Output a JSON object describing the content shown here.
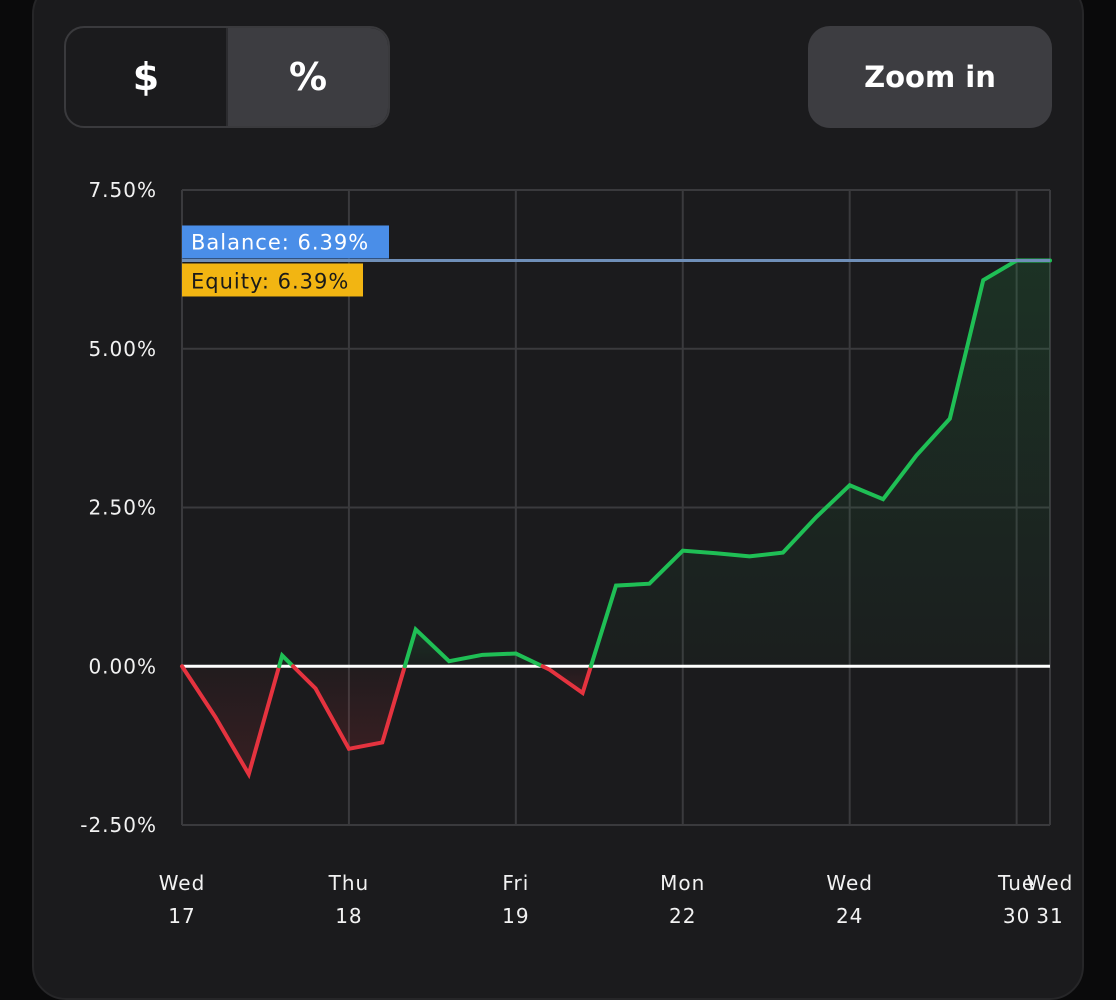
{
  "toggle": {
    "dollar_label": "$",
    "percent_label": "%",
    "active": "percent"
  },
  "zoom": {
    "label": "Zoom in"
  },
  "colors": {
    "positive": "#1fbf55",
    "negative": "#e5333f",
    "balance": "#4a8ee8",
    "equity": "#f2b512",
    "grid": "#3a3a3d",
    "zero_line": "#ffffff"
  },
  "chart_data": {
    "type": "line",
    "title": "",
    "xlabel": "",
    "ylabel": "",
    "ylim": [
      -2.5,
      7.5
    ],
    "y_ticks": [
      {
        "value": 7.5,
        "label": "7.50%"
      },
      {
        "value": 5.0,
        "label": "5.00%"
      },
      {
        "value": 2.5,
        "label": "2.50%"
      },
      {
        "value": 0.0,
        "label": "0.00%"
      },
      {
        "value": -2.5,
        "label": "-2.50%"
      }
    ],
    "x_ticks": [
      {
        "day": "Wed",
        "date": "17",
        "index": 0
      },
      {
        "day": "Thu",
        "date": "18",
        "index": 5
      },
      {
        "day": "Fri",
        "date": "19",
        "index": 10
      },
      {
        "day": "Mon",
        "date": "22",
        "index": 15
      },
      {
        "day": "Wed",
        "date": "24",
        "index": 20
      },
      {
        "day": "Tue",
        "date": "30",
        "index": 25
      },
      {
        "day": "Wed",
        "date": "31",
        "index": 26
      }
    ],
    "x_range": [
      0,
      26
    ],
    "series": [
      {
        "name": "Balance %",
        "x": [
          0,
          1,
          2,
          3,
          4,
          5,
          6,
          7,
          8,
          9,
          10,
          11,
          12,
          13,
          14,
          15,
          16,
          17,
          18,
          19,
          20,
          21,
          22,
          23,
          24,
          25,
          26
        ],
        "values": [
          0.0,
          -0.8,
          -1.7,
          0.17,
          -0.35,
          -1.3,
          -1.2,
          0.58,
          0.08,
          0.18,
          0.2,
          -0.05,
          -0.42,
          1.27,
          1.3,
          1.82,
          1.78,
          1.73,
          1.79,
          2.35,
          2.85,
          2.63,
          3.32,
          3.9,
          6.08,
          6.39,
          6.39
        ]
      }
    ],
    "annotations": [
      {
        "label": "Balance: 6.39%",
        "value": 6.39,
        "kind": "balance"
      },
      {
        "label": "Equity: 6.39%",
        "value": 6.39,
        "kind": "equity"
      }
    ]
  }
}
